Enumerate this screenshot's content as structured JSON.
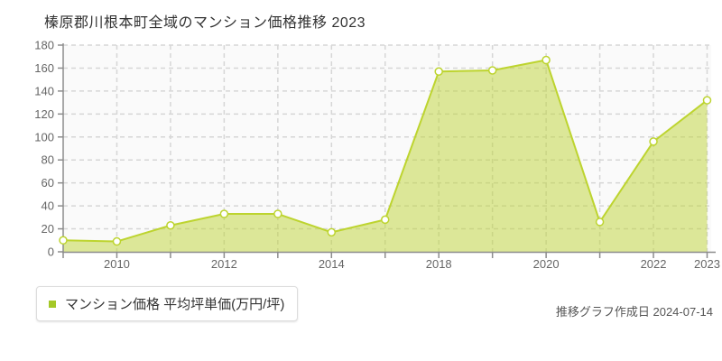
{
  "title": "榛原郡川根本町全域のマンション価格推移 2023",
  "legend": {
    "label": "マンション価格 平均坪単価(万円/坪)",
    "marker_color": "#a4c827"
  },
  "footer": {
    "created_label": "推移グラフ作成日 2024-07-14"
  },
  "chart_data": {
    "type": "area",
    "title": "榛原郡川根本町全域のマンション価格推移 2023",
    "categories": [
      "2009",
      "2010",
      "2011",
      "2012",
      "2013",
      "2014",
      "2016",
      "2018",
      "2019",
      "2020",
      "2021",
      "2022",
      "2023"
    ],
    "values": [
      10,
      9,
      23,
      33,
      33,
      17,
      28,
      157,
      158,
      167,
      26,
      96,
      132
    ],
    "series_name": "マンション価格 平均坪単価(万円/坪)",
    "xlabel": "",
    "ylabel": "",
    "ylim": [
      0,
      180
    ],
    "y_ticks": [
      0,
      20,
      40,
      60,
      80,
      100,
      120,
      140,
      160,
      180
    ],
    "x_labeled_ticks": [
      "2010",
      "2012",
      "2014",
      "2018",
      "2020",
      "2022",
      "2023"
    ],
    "grid": true,
    "legend_position": "bottom-left",
    "colors": {
      "line": "#bdd42f",
      "fill": "rgba(189,212,47,0.48)",
      "marker_fill": "#ffffff",
      "marker_stroke": "#bdd42f",
      "grid": "#d6d6d6",
      "axis": "#8c8c8c",
      "tick_label": "#666666",
      "plot_bg": "#fafafa"
    }
  }
}
